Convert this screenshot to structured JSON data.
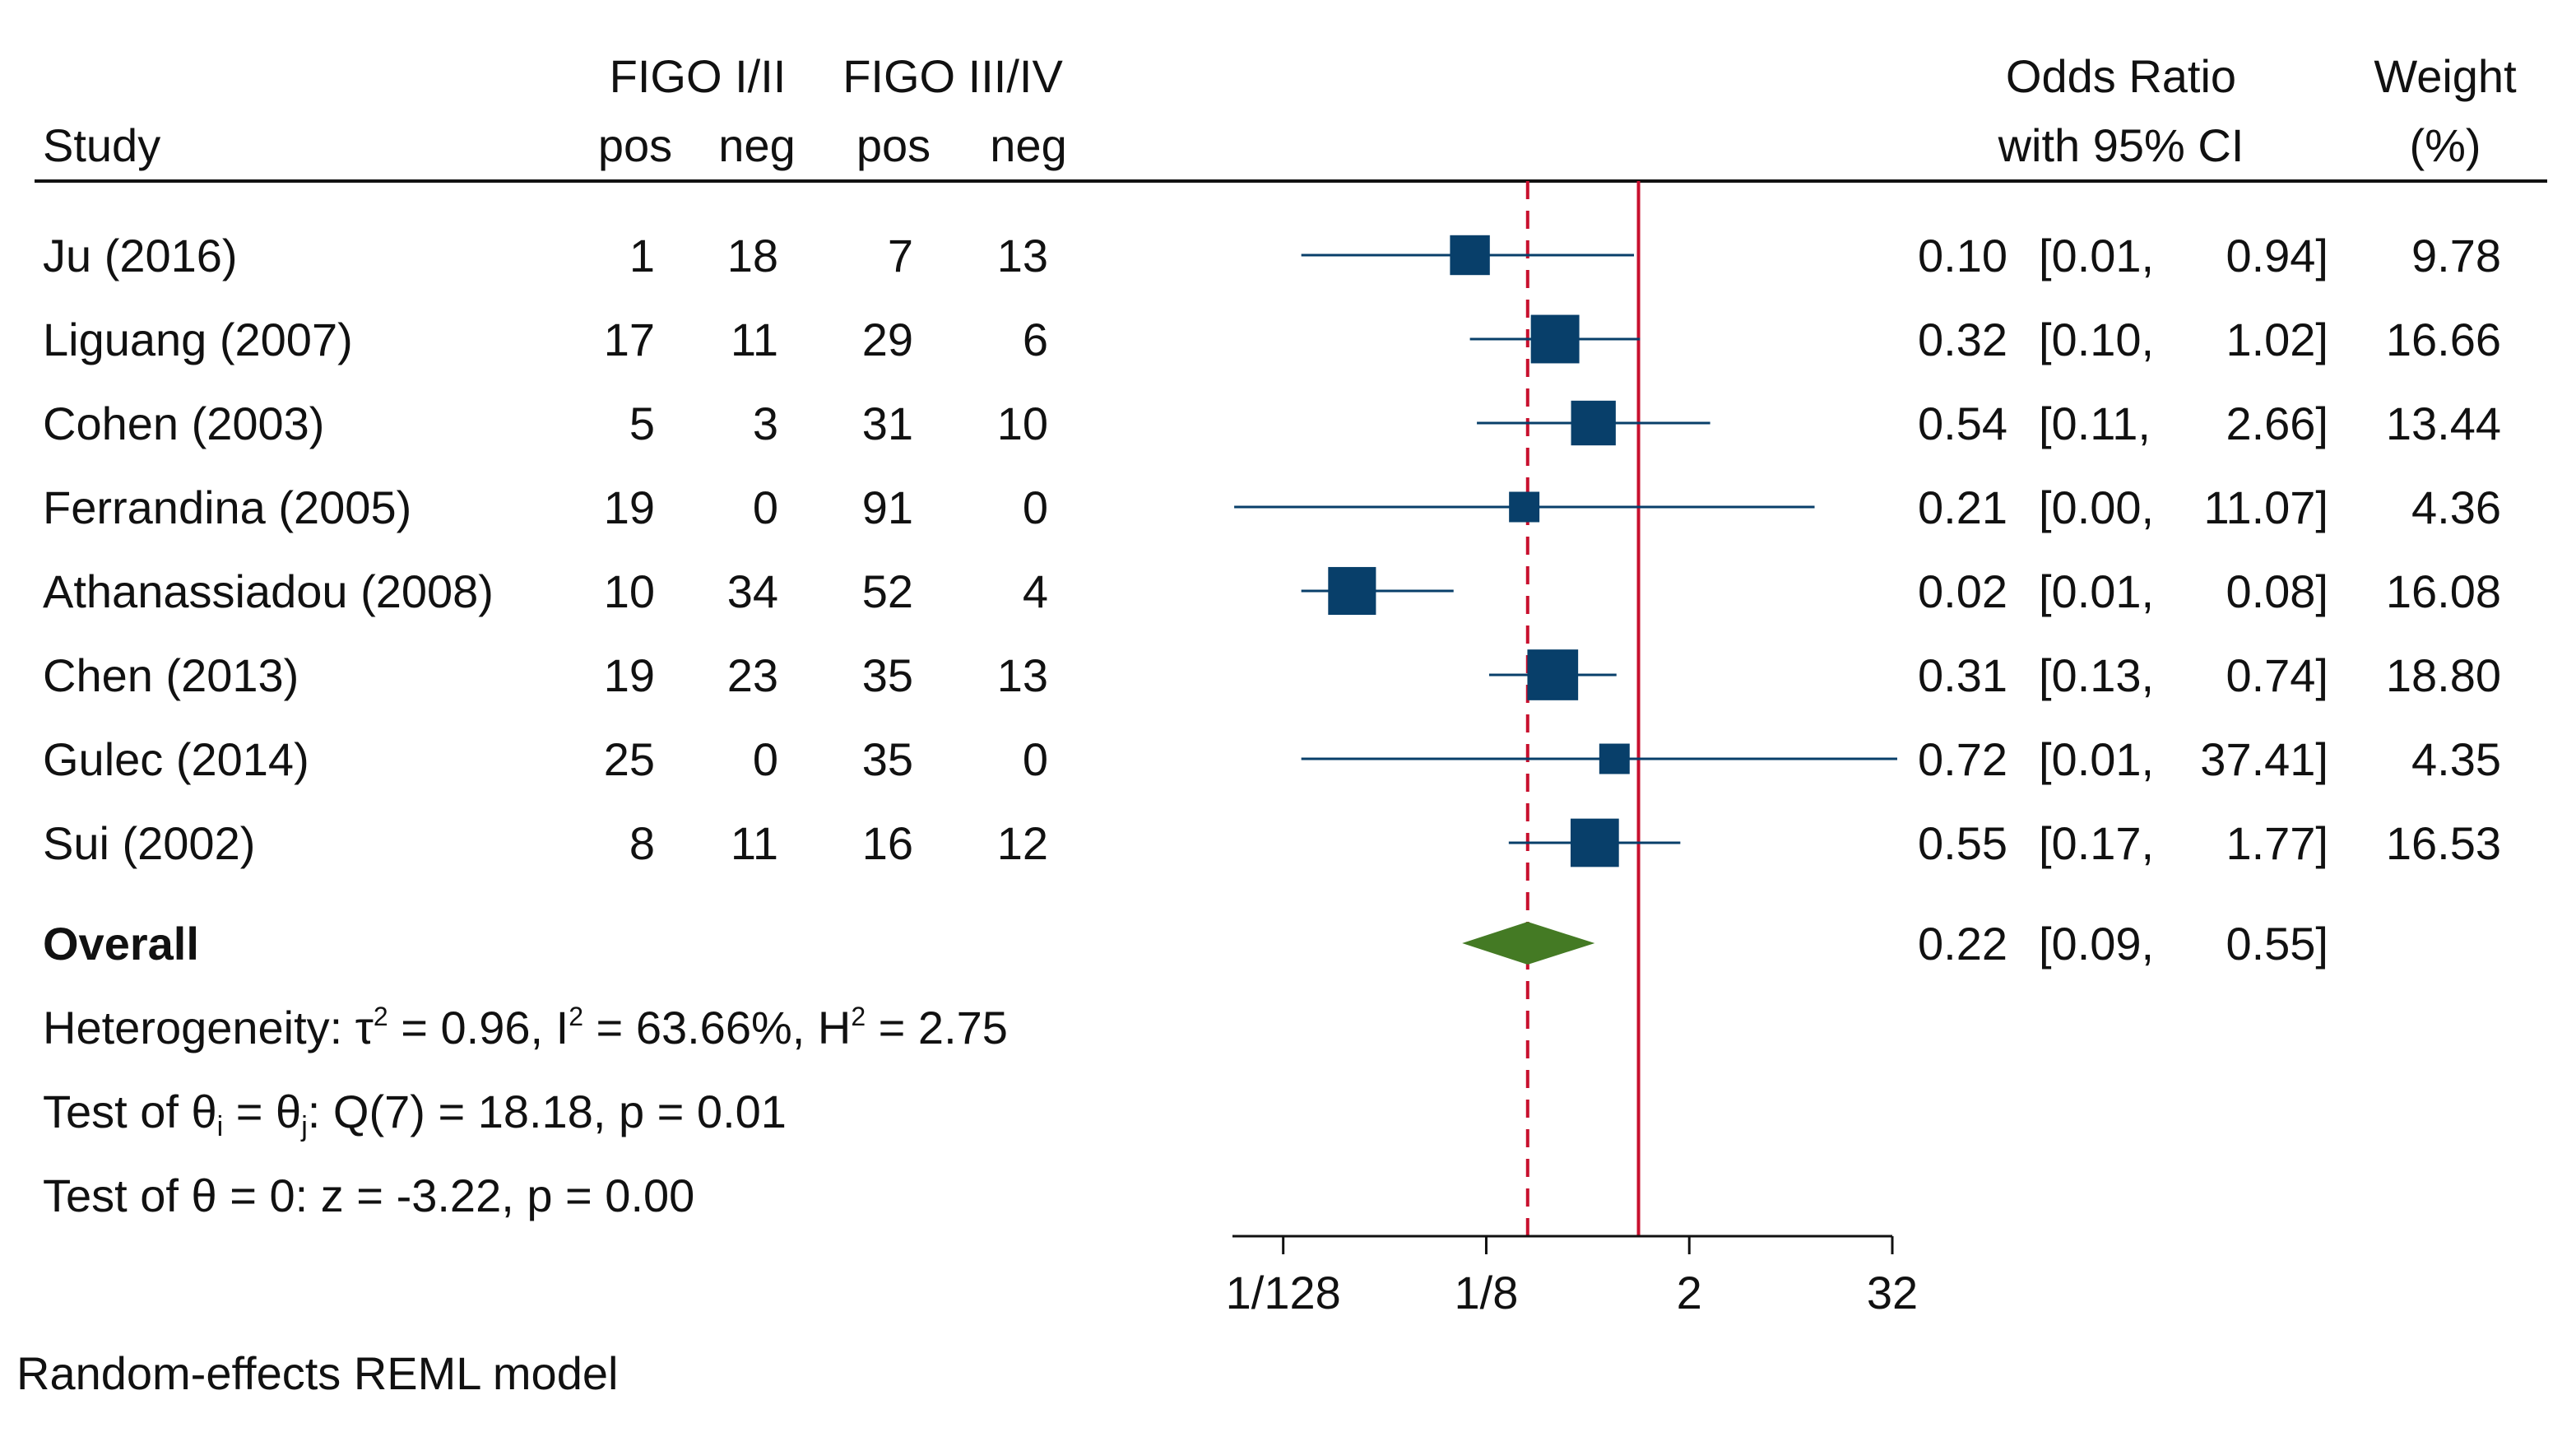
{
  "chart_data": {
    "type": "forest",
    "headers": {
      "study": "Study",
      "group1": "FIGO I/II",
      "group2": "FIGO III/IV",
      "pos": "pos",
      "neg": "neg",
      "effect_line1": "Odds Ratio",
      "effect_line2": "with 95% CI",
      "weight_line1": "Weight",
      "weight_line2": "(%)"
    },
    "studies": [
      {
        "name": "Ju (2016)",
        "g1_pos": "1",
        "g1_neg": "18",
        "g2_pos": "7",
        "g2_neg": "13",
        "or": 0.1,
        "lo": 0.01,
        "hi": 0.94,
        "or_text": "0.10",
        "lo_text": "[0.01,",
        "hi_text": "0.94]",
        "weight": "9.78"
      },
      {
        "name": "Liguang (2007)",
        "g1_pos": "17",
        "g1_neg": "11",
        "g2_pos": "29",
        "g2_neg": "6",
        "or": 0.32,
        "lo": 0.1,
        "hi": 1.02,
        "or_text": "0.32",
        "lo_text": "[0.10,",
        "hi_text": "1.02]",
        "weight": "16.66"
      },
      {
        "name": "Cohen (2003)",
        "g1_pos": "5",
        "g1_neg": "3",
        "g2_pos": "31",
        "g2_neg": "10",
        "or": 0.54,
        "lo": 0.11,
        "hi": 2.66,
        "or_text": "0.54",
        "lo_text": "[0.11,",
        "hi_text": "2.66]",
        "weight": "13.44"
      },
      {
        "name": "Ferrandina (2005)",
        "g1_pos": "19",
        "g1_neg": "0",
        "g2_pos": "91",
        "g2_neg": "0",
        "or": 0.21,
        "lo": 0.004,
        "hi": 11.07,
        "or_text": "0.21",
        "lo_text": "[0.00,",
        "hi_text": "11.07]",
        "weight": "4.36"
      },
      {
        "name": "Athanassiadou (2008)",
        "g1_pos": "10",
        "g1_neg": "34",
        "g2_pos": "52",
        "g2_neg": "4",
        "or": 0.02,
        "lo": 0.01,
        "hi": 0.08,
        "or_text": "0.02",
        "lo_text": "[0.01,",
        "hi_text": "0.08]",
        "weight": "16.08"
      },
      {
        "name": "Chen (2013)",
        "g1_pos": "19",
        "g1_neg": "23",
        "g2_pos": "35",
        "g2_neg": "13",
        "or": 0.31,
        "lo": 0.13,
        "hi": 0.74,
        "or_text": "0.31",
        "lo_text": "[0.13,",
        "hi_text": "0.74]",
        "weight": "18.80"
      },
      {
        "name": "Gulec (2014)",
        "g1_pos": "25",
        "g1_neg": "0",
        "g2_pos": "35",
        "g2_neg": "0",
        "or": 0.72,
        "lo": 0.01,
        "hi": 37.41,
        "or_text": "0.72",
        "lo_text": "[0.01,",
        "hi_text": "37.41]",
        "weight": "4.35"
      },
      {
        "name": "Sui (2002)",
        "g1_pos": "8",
        "g1_neg": "11",
        "g2_pos": "16",
        "g2_neg": "12",
        "or": 0.55,
        "lo": 0.17,
        "hi": 1.77,
        "or_text": "0.55",
        "lo_text": "[0.17,",
        "hi_text": "1.77]",
        "weight": "16.53"
      }
    ],
    "overall": {
      "label": "Overall",
      "or": 0.22,
      "lo": 0.09,
      "hi": 0.55,
      "or_text": "0.22",
      "lo_text": "[0.09,",
      "hi_text": "0.55]"
    },
    "stats": {
      "heterogeneity": {
        "prefix": "Heterogeneity: τ",
        "sup1": "2",
        "mid1": " = 0.96, I",
        "sup2": "2",
        "mid2": " = 63.66%, H",
        "sup3": "2",
        "end": " = 2.75"
      },
      "test_q": {
        "prefix": "Test of θ",
        "sub1": "i",
        "mid": " = θ",
        "sub2": "j",
        "end": ": Q(7) = 18.18, p = 0.01"
      },
      "test_z": "Test of θ = 0: z = -3.22, p = 0.00"
    },
    "x_axis": {
      "scale": "log2",
      "range": [
        0.00390625,
        32
      ],
      "ticks": [
        {
          "value": 0.0078125,
          "label": "1/128"
        },
        {
          "value": 0.125,
          "label": "1/8"
        },
        {
          "value": 2,
          "label": "2"
        },
        {
          "value": 32,
          "label": "32"
        }
      ]
    },
    "reference_line": 1,
    "overall_line": 0.22,
    "footnote": "Random-effects REML model",
    "colors": {
      "marker": "#083f6a",
      "diamond": "#447a24",
      "ref_line": "#c8102e",
      "text": "#111111"
    }
  }
}
